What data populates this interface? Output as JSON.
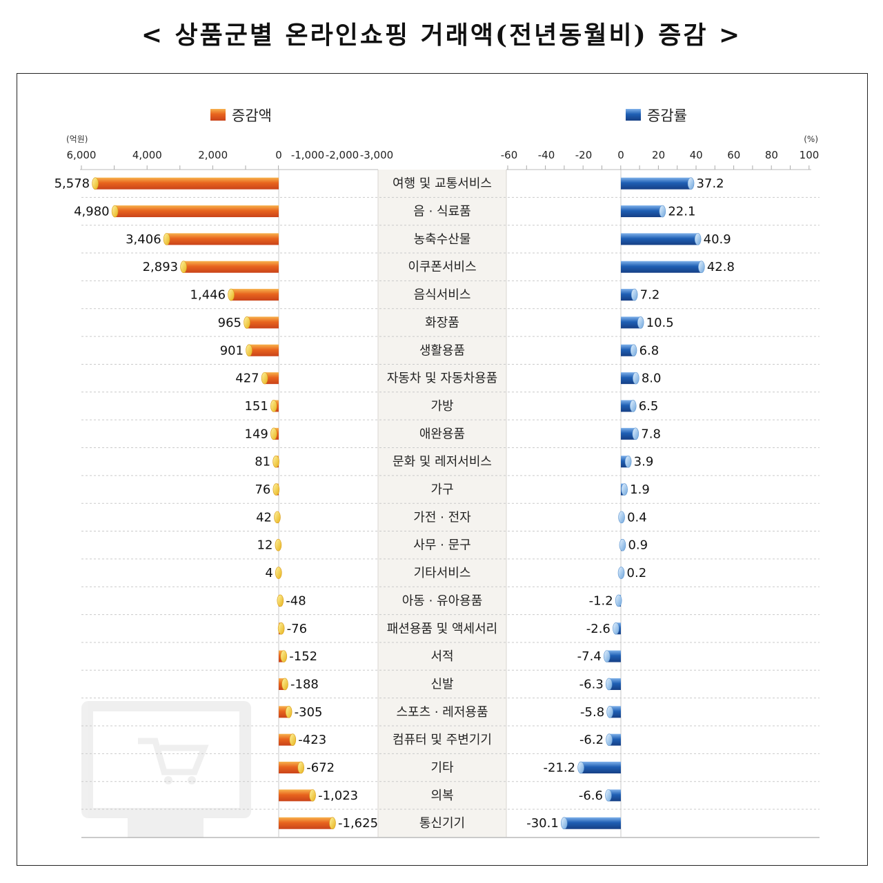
{
  "title": "< 상품군별 온라인쇼핑 거래액(전년동월비) 증감 >",
  "chart_data": {
    "type": "bar",
    "categories": [
      "여행 및 교통서비스",
      "음 · 식료품",
      "농축수산물",
      "이쿠폰서비스",
      "음식서비스",
      "화장품",
      "생활용품",
      "자동차 및 자동차용품",
      "가방",
      "애완용품",
      "문화 및 레저서비스",
      "가구",
      "가전 · 전자",
      "사무 · 문구",
      "기타서비스",
      "아동 · 유아용품",
      "패션용품 및 액세서리",
      "서적",
      "신발",
      "스포츠 · 레저용품",
      "컴퓨터 및 주변기기",
      "기타",
      "의복",
      "통신기기"
    ],
    "series": [
      {
        "name": "증감액",
        "unit": "(억원)",
        "color": "#e8641e",
        "values": [
          5578,
          4980,
          3406,
          2893,
          1446,
          965,
          901,
          427,
          151,
          149,
          81,
          76,
          42,
          12,
          4,
          -48,
          -76,
          -152,
          -188,
          -305,
          -423,
          -672,
          -1023,
          -1625
        ],
        "labels": [
          "5,578",
          "4,980",
          "3,406",
          "2,893",
          "1,446",
          "965",
          "901",
          "427",
          "151",
          "149",
          "81",
          "76",
          "42",
          "12",
          "4",
          "-48",
          "-76",
          "-152",
          "-188",
          "-305",
          "-423",
          "-672",
          "-1,023",
          "-1,625"
        ],
        "axis_ticks": [
          "6,000",
          "4,000",
          "2,000",
          "0",
          "-1,000",
          "-2,000",
          "-3,000"
        ]
      },
      {
        "name": "증감률",
        "unit": "(%)",
        "color": "#1f5fb4",
        "values": [
          37.2,
          22.1,
          40.9,
          42.8,
          7.2,
          10.5,
          6.8,
          8.0,
          6.5,
          7.8,
          3.9,
          1.9,
          0.4,
          0.9,
          0.2,
          -1.2,
          -2.6,
          -7.4,
          -6.3,
          -5.8,
          -6.2,
          -21.2,
          -6.6,
          -30.1
        ],
        "labels": [
          "37.2",
          "22.1",
          "40.9",
          "42.8",
          "7.2",
          "10.5",
          "6.8",
          "8.0",
          "6.5",
          "7.8",
          "3.9",
          "1.9",
          "0.4",
          "0.9",
          "0.2",
          "-1.2",
          "-2.6",
          "-7.4",
          "-6.3",
          "-5.8",
          "-6.2",
          "-21.2",
          "-6.6",
          "-30.1"
        ],
        "axis_ticks": [
          "-60",
          "-40",
          "-20",
          "0",
          "20",
          "40",
          "60",
          "80",
          "100"
        ]
      }
    ]
  }
}
